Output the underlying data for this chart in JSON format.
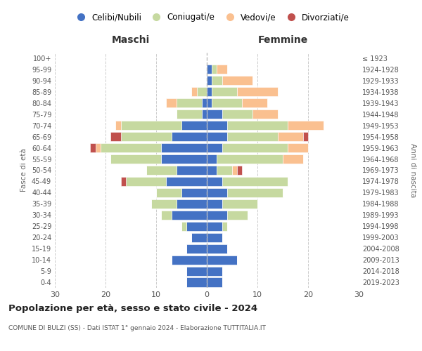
{
  "age_groups": [
    "0-4",
    "5-9",
    "10-14",
    "15-19",
    "20-24",
    "25-29",
    "30-34",
    "35-39",
    "40-44",
    "45-49",
    "50-54",
    "55-59",
    "60-64",
    "65-69",
    "70-74",
    "75-79",
    "80-84",
    "85-89",
    "90-94",
    "95-99",
    "100+"
  ],
  "birth_years": [
    "2019-2023",
    "2014-2018",
    "2009-2013",
    "2004-2008",
    "1999-2003",
    "1994-1998",
    "1989-1993",
    "1984-1988",
    "1979-1983",
    "1974-1978",
    "1969-1973",
    "1964-1968",
    "1959-1963",
    "1954-1958",
    "1949-1953",
    "1944-1948",
    "1939-1943",
    "1934-1938",
    "1929-1933",
    "1924-1928",
    "≤ 1923"
  ],
  "males": {
    "celibi": [
      4,
      4,
      7,
      4,
      3,
      4,
      7,
      6,
      5,
      8,
      6,
      9,
      9,
      7,
      5,
      1,
      1,
      0,
      0,
      0,
      0
    ],
    "coniugati": [
      0,
      0,
      0,
      0,
      0,
      1,
      2,
      5,
      5,
      8,
      6,
      10,
      12,
      10,
      12,
      5,
      5,
      2,
      0,
      0,
      0
    ],
    "vedovi": [
      0,
      0,
      0,
      0,
      0,
      0,
      0,
      0,
      0,
      0,
      0,
      0,
      1,
      0,
      1,
      0,
      2,
      1,
      0,
      0,
      0
    ],
    "divorziati": [
      0,
      0,
      0,
      0,
      0,
      0,
      0,
      0,
      0,
      1,
      0,
      0,
      1,
      2,
      0,
      0,
      0,
      0,
      0,
      0,
      0
    ]
  },
  "females": {
    "nubili": [
      3,
      3,
      6,
      4,
      3,
      3,
      4,
      3,
      4,
      3,
      2,
      2,
      3,
      4,
      4,
      3,
      1,
      1,
      1,
      1,
      0
    ],
    "coniugate": [
      0,
      0,
      0,
      0,
      0,
      1,
      4,
      7,
      11,
      13,
      3,
      13,
      13,
      10,
      12,
      6,
      6,
      5,
      2,
      1,
      0
    ],
    "vedove": [
      0,
      0,
      0,
      0,
      0,
      0,
      0,
      0,
      0,
      0,
      1,
      4,
      4,
      5,
      7,
      5,
      5,
      8,
      6,
      2,
      0
    ],
    "divorziate": [
      0,
      0,
      0,
      0,
      0,
      0,
      0,
      0,
      0,
      0,
      1,
      0,
      0,
      1,
      0,
      0,
      0,
      0,
      0,
      0,
      0
    ]
  },
  "colors": {
    "celibi_nubili": "#4472C4",
    "coniugati": "#C6D9A0",
    "vedovi": "#FAC090",
    "divorziati": "#C0504D"
  },
  "xlim": [
    -30,
    30
  ],
  "title_main": "Popolazione per età, sesso e stato civile - 2024",
  "title_sub": "COMUNE DI BULZI (SS) - Dati ISTAT 1° gennaio 2024 - Elaborazione TUTTITALIA.IT",
  "legend_labels": [
    "Celibi/Nubili",
    "Coniugati/e",
    "Vedovi/e",
    "Divorziati/e"
  ],
  "ylabel_left": "Fasce di età",
  "ylabel_right": "Anni di nascita",
  "xlabel_left": "Maschi",
  "xlabel_right": "Femmine",
  "background_color": "#ffffff",
  "grid_color": "#cccccc"
}
